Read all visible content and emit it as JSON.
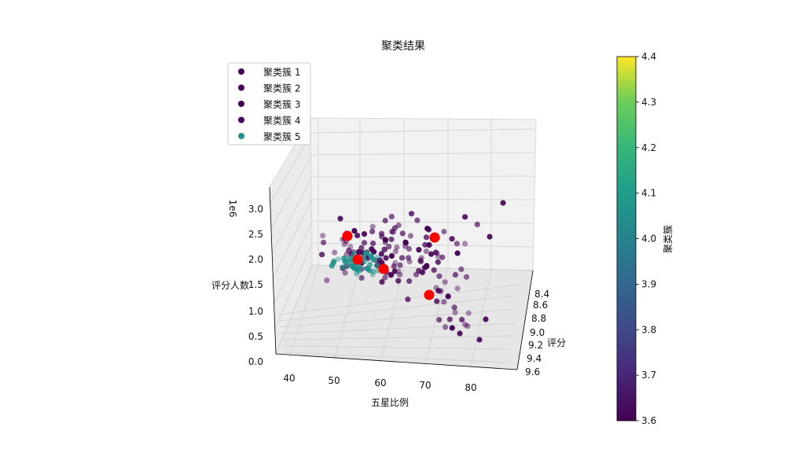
{
  "chart_data": {
    "type": "scatter",
    "title": "聚类结果",
    "axes": {
      "x": {
        "label": "五星比例",
        "ticks": [
          "40",
          "50",
          "60",
          "70",
          "80"
        ]
      },
      "y": {
        "label": "评分",
        "ticks": [
          "8.4",
          "8.6",
          "8.8",
          "9.0",
          "9.2",
          "9.4",
          "9.6"
        ]
      },
      "z": {
        "label": "评分人数",
        "ticks": [
          "0.0",
          "0.5",
          "1.0",
          "1.5",
          "2.0",
          "2.5",
          "3.0"
        ],
        "offset_text": "1e6"
      }
    },
    "legend": {
      "placement": "top-left",
      "items": [
        {
          "label": "聚类簇 1",
          "color": "#440154"
        },
        {
          "label": "聚类簇 2",
          "color": "#440154"
        },
        {
          "label": "聚类簇 3",
          "color": "#440154"
        },
        {
          "label": "聚类簇 4",
          "color": "#440154"
        },
        {
          "label": "聚类簇 5",
          "color": "#21918c"
        }
      ]
    },
    "colorbar": {
      "label": "聚类簇",
      "ticks": [
        "4.4",
        "4.3",
        "4.2",
        "4.1",
        "4.0",
        "3.9",
        "3.8",
        "3.7",
        "3.6"
      ],
      "colormap": "viridis"
    },
    "centroid_color": "#ff0000"
  }
}
